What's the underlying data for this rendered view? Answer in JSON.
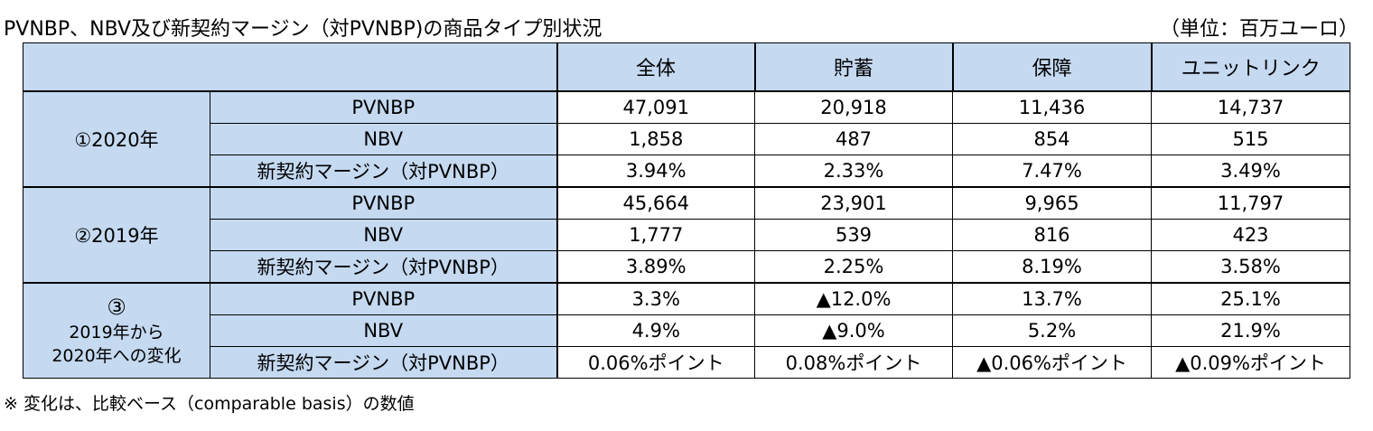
{
  "title": "PVNBP、NBV及び新契約マージン（対PVNBP)の商品タイプ別状況",
  "unit": "（単位：百万ユーロ）",
  "columns": [
    "全体",
    "貯蓄",
    "保障",
    "ユニットリンク"
  ],
  "groups": [
    {
      "label": "①2020年",
      "rows": [
        {
          "metric": "PVNBP",
          "values": [
            "47,091",
            "20,918",
            "11,436",
            "14,737"
          ]
        },
        {
          "metric": "NBV",
          "values": [
            "1,858",
            "487",
            "854",
            "515"
          ]
        },
        {
          "metric": "新契約マージン（対PVNBP）",
          "values": [
            "3.94%",
            "2.33%",
            "7.47%",
            "3.49%"
          ]
        }
      ]
    },
    {
      "label": "②2019年",
      "rows": [
        {
          "metric": "PVNBP",
          "values": [
            "45,664",
            "23,901",
            "9,965",
            "11,797"
          ]
        },
        {
          "metric": "NBV",
          "values": [
            "1,777",
            "539",
            "816",
            "423"
          ]
        },
        {
          "metric": "新契約マージン（対PVNBP）",
          "values": [
            "3.89%",
            "2.25%",
            "8.19%",
            "3.58%"
          ]
        }
      ]
    },
    {
      "label_num": "③",
      "label_line1": "2019年から",
      "label_line2": "2020年への変化",
      "rows": [
        {
          "metric": "PVNBP",
          "values": [
            "3.3%",
            "▲12.0%",
            "13.7%",
            "25.1%"
          ]
        },
        {
          "metric": "NBV",
          "values": [
            "4.9%",
            "▲9.0%",
            "5.2%",
            "21.9%"
          ]
        },
        {
          "metric": "新契約マージン（対PVNBP）",
          "values": [
            "0.06%ポイント",
            "0.08%ポイント",
            "▲0.06%ポイント",
            "▲0.09%ポイント"
          ]
        }
      ]
    }
  ],
  "note": "※ 変化は、比較ベース（comparable basis）の数値"
}
